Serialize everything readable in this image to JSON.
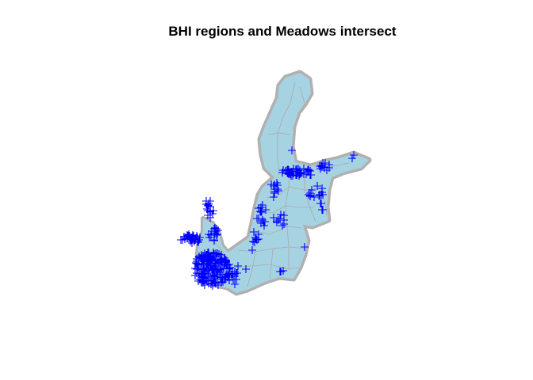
{
  "title": "BHI regions and Meadows intersect",
  "colors": {
    "sea_fill": "#a6d3e2",
    "region_border": "#a9a9a9",
    "coast_outline": "#b0b0b0",
    "meadow_marker": "#0000ff"
  },
  "legend": "none",
  "marker_symbol": "plus"
}
